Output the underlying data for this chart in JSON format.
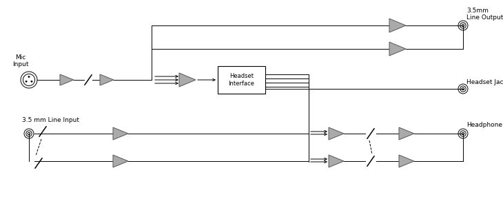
{
  "bg_color": "#ffffff",
  "line_color": "#000000",
  "tri_color": "#aaaaaa",
  "tri_edge": "#555555",
  "box_color": "#ffffff",
  "box_edge": "#000000",
  "labels": {
    "mic_input": "Mic\nInput",
    "line_input": "3.5 mm Line Input",
    "line_output": "3.5mm\nLine Output",
    "headset_jack": "Headset Jack",
    "headphone": "Headphone",
    "headset_interface": "Headset\nInterface"
  },
  "fig_width": 7.3,
  "fig_height": 2.89,
  "dpi": 100
}
